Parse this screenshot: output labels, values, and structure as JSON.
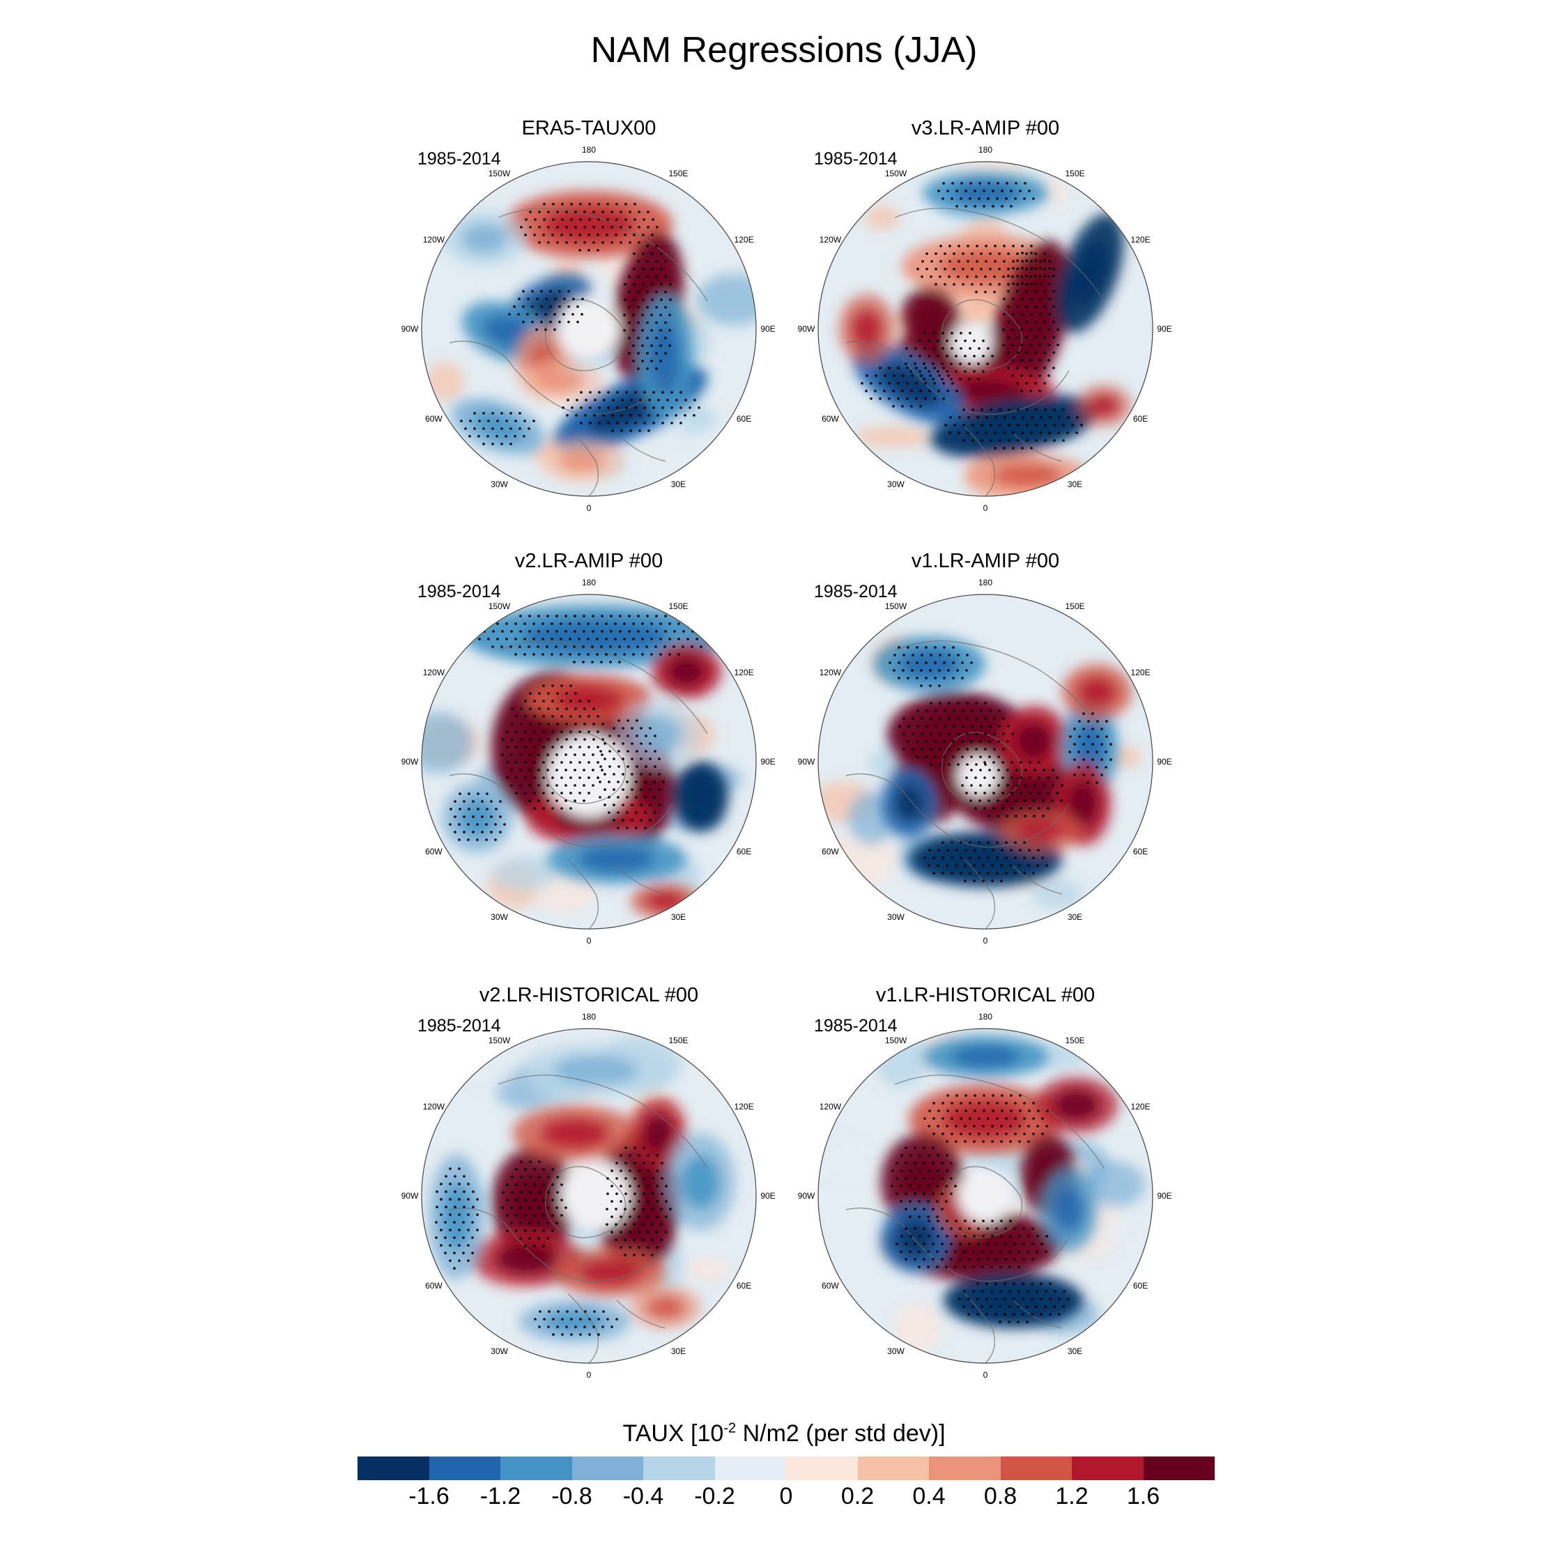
{
  "title": "NAM Regressions (JJA)",
  "panels": [
    {
      "title": "ERA5-TAUX00",
      "period": "1985-2014",
      "pattern": "era5"
    },
    {
      "title": "v3.LR-AMIP  #00",
      "period": "1985-2014",
      "pattern": "v3amip"
    },
    {
      "title": "v2.LR-AMIP  #00",
      "period": "1985-2014",
      "pattern": "v2amip"
    },
    {
      "title": "v1.LR-AMIP  #00",
      "period": "1985-2014",
      "pattern": "v1amip"
    },
    {
      "title": "v2.LR-HISTORICAL  #00",
      "period": "1985-2014",
      "pattern": "v2hist"
    },
    {
      "title": "v1.LR-HISTORICAL  #00",
      "period": "1985-2014",
      "pattern": "v1hist"
    }
  ],
  "longitude_labels": [
    "180",
    "150E",
    "120E",
    "90E",
    "60E",
    "30E",
    "0",
    "30W",
    "60W",
    "90W",
    "120W",
    "150W"
  ],
  "colorbar": {
    "title_prefix": "TAUX [10",
    "title_exponent": "-2",
    "title_suffix": " N/m2 (per std dev)]",
    "colors": [
      "#053061",
      "#2166ac",
      "#4393c3",
      "#7fb2d6",
      "#b4d4e7",
      "#e4edf3",
      "#fbe6dc",
      "#f6c0a5",
      "#ea927a",
      "#d05545",
      "#b2182b",
      "#67001f"
    ],
    "labels": [
      "-1.6",
      "-1.2",
      "-0.8",
      "-0.4",
      "-0.2",
      "0",
      "0.2",
      "0.4",
      "0.8",
      "1.2",
      "1.6"
    ]
  }
}
